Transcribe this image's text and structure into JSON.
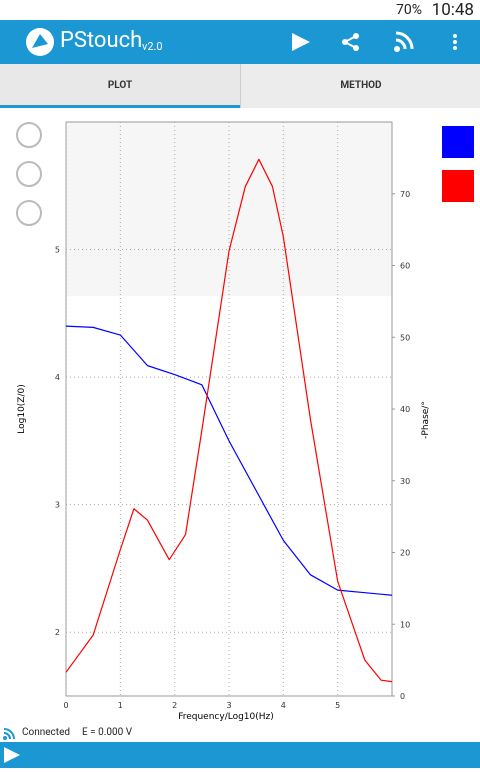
{
  "status": {
    "battery": "70%",
    "time": "10:48"
  },
  "app": {
    "name": "PStouch",
    "version": "v2.0"
  },
  "tabs": [
    "PLOT",
    "METHOD"
  ],
  "footer": {
    "connection": "Connected",
    "potential": "E = 0.000 V"
  },
  "chart_data": {
    "type": "line",
    "x_label": "Frequency/Log10(Hz)",
    "y_label": "Log10(Z/0)",
    "y2_label": "-Phase/°",
    "xlim": [
      0,
      6
    ],
    "xticks": [
      0,
      1,
      2,
      3,
      4,
      5
    ],
    "ylim": [
      1.5,
      6
    ],
    "yticks": [
      2,
      3,
      4,
      5
    ],
    "y2lim": [
      0,
      80
    ],
    "y2ticks": [
      0,
      10,
      20,
      30,
      40,
      50,
      60,
      70
    ],
    "grid": true,
    "series": [
      {
        "color": "#0000ff",
        "x": [
          0,
          0.5,
          1,
          1.5,
          2,
          2.5,
          3,
          3.5,
          4,
          4.5,
          5,
          5.5,
          6
        ],
        "values": [
          4.4,
          4.39,
          4.33,
          4.09,
          4.02,
          3.94,
          3.5,
          3.11,
          2.72,
          2.45,
          2.33,
          2.31,
          2.29
        ]
      },
      {
        "color": "#ff0000",
        "axis": "y2",
        "x": [
          0,
          0.5,
          1,
          1.25,
          1.5,
          1.9,
          2.2,
          2.5,
          3,
          3.3,
          3.55,
          3.8,
          4,
          4.5,
          5,
          5.5,
          5.8,
          6
        ],
        "values": [
          3.3,
          8.5,
          20.4,
          26.1,
          24.5,
          19,
          22.5,
          37,
          62,
          71,
          74.8,
          71,
          64,
          38.5,
          16,
          5,
          2.2,
          2
        ]
      }
    ]
  }
}
